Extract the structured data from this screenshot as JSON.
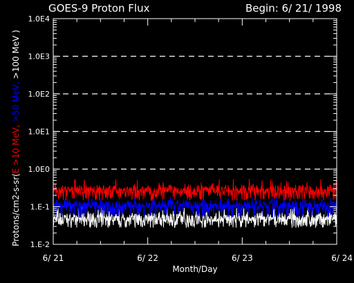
{
  "chart_data": {
    "type": "line",
    "title": "GOES-9 Proton Flux",
    "subtitle": "Begin: 6/ 21/ 1998",
    "xlabel": "Month/Day",
    "ylabel_parts": [
      {
        "text": "Protons/cm2-s-sr(",
        "color": "#ffffff"
      },
      {
        "text": "E >10 MeV, ",
        "color": "#ff0000"
      },
      {
        "text": ">50 MeV, ",
        "color": "#0000ff"
      },
      {
        "text": ">100 MeV )",
        "color": "#ffffff"
      }
    ],
    "y_scale": "log",
    "ylim": [
      0.01,
      10000
    ],
    "y_ticks": [
      {
        "value": 10000,
        "label": "1.0E4"
      },
      {
        "value": 1000,
        "label": "1.0E3"
      },
      {
        "value": 100,
        "label": "1.0E2"
      },
      {
        "value": 10,
        "label": "1.0E1"
      },
      {
        "value": 1,
        "label": "1.0E0"
      },
      {
        "value": 0.1,
        "label": "1.E-1"
      },
      {
        "value": 0.01,
        "label": "1.E-2"
      }
    ],
    "x_unit": "days",
    "xlim": [
      0,
      3
    ],
    "x_ticks": [
      {
        "value": 0,
        "label": "6/ 21"
      },
      {
        "value": 1,
        "label": "6/ 22"
      },
      {
        "value": 2,
        "label": "6/ 23"
      },
      {
        "value": 3,
        "label": "6/ 24"
      }
    ],
    "grid": "dashed horizontal at each decade",
    "series": [
      {
        "name": "E >10 MeV",
        "color": "#ff0000",
        "typical": 0.22,
        "min": 0.13,
        "max": 0.55
      },
      {
        "name": ">50 MeV",
        "color": "#0000ff",
        "typical": 0.09,
        "min": 0.045,
        "max": 0.18
      },
      {
        "name": ">100 MeV",
        "color": "#ffffff",
        "typical": 0.04,
        "min": 0.025,
        "max": 0.1
      }
    ]
  },
  "colors": {
    "background": "#000000",
    "axes": "#ffffff",
    "grid": "#ffffff"
  }
}
